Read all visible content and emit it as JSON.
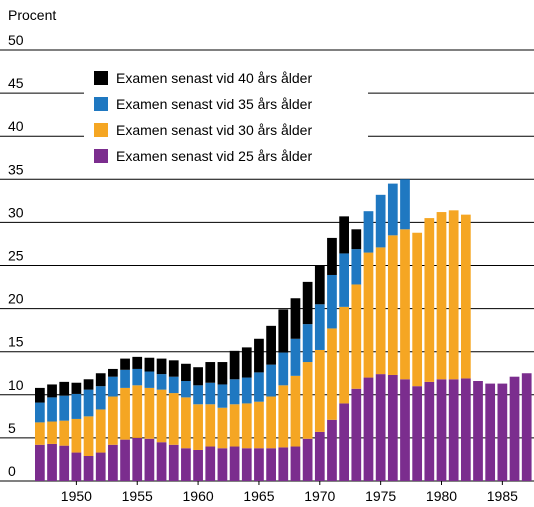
{
  "chart_data": {
    "type": "bar",
    "stacked": true,
    "y_axis_label": "Procent",
    "x": [
      1947,
      1948,
      1949,
      1950,
      1951,
      1952,
      1953,
      1954,
      1955,
      1956,
      1957,
      1958,
      1959,
      1960,
      1961,
      1962,
      1963,
      1964,
      1965,
      1966,
      1967,
      1968,
      1969,
      1970,
      1971,
      1972,
      1973,
      1974,
      1975,
      1976,
      1977,
      1978,
      1979,
      1980,
      1981,
      1982,
      1983,
      1984,
      1985,
      1986,
      1987
    ],
    "xlim": [
      1946.6,
      1987.6
    ],
    "xticks": [
      1950,
      1955,
      1960,
      1965,
      1970,
      1975,
      1980,
      1985
    ],
    "ylim": [
      0,
      50
    ],
    "yticks": [
      0,
      5,
      10,
      15,
      20,
      25,
      30,
      35,
      40,
      45,
      50
    ],
    "grid": true,
    "legend": "top-left",
    "series": [
      {
        "name": "Examen senast vid 25 års ålder",
        "color": "#7b2d8e",
        "values": [
          4.2,
          4.3,
          4.1,
          3.3,
          2.9,
          3.3,
          4.2,
          4.8,
          5.0,
          4.9,
          4.5,
          4.2,
          3.8,
          3.6,
          4.0,
          3.8,
          4.0,
          3.8,
          3.8,
          3.8,
          3.9,
          4.0,
          4.9,
          5.7,
          7.1,
          9.0,
          10.7,
          12.0,
          12.4,
          12.3,
          11.8,
          11.0,
          11.5,
          11.8,
          11.8,
          11.9,
          11.6,
          11.3,
          11.3,
          12.1,
          12.5
        ]
      },
      {
        "name": "Examen senast vid 30 års ålder",
        "color": "#f5a623",
        "values": [
          2.6,
          2.6,
          2.9,
          3.9,
          4.6,
          5.0,
          5.6,
          6.0,
          6.1,
          5.9,
          6.1,
          6.0,
          5.9,
          5.3,
          4.9,
          4.7,
          4.9,
          5.2,
          5.4,
          6.0,
          7.2,
          8.2,
          8.9,
          9.5,
          10.6,
          11.2,
          12.1,
          14.5,
          14.7,
          16.2,
          17.4,
          17.8,
          19.0,
          19.4,
          19.6,
          19.0,
          null,
          null,
          null,
          null,
          null
        ]
      },
      {
        "name": "Examen senast vid 35 års ålder",
        "color": "#1f78c1",
        "values": [
          2.3,
          2.8,
          2.9,
          2.9,
          3.1,
          2.7,
          2.3,
          2.1,
          1.9,
          1.9,
          1.8,
          1.9,
          1.9,
          2.2,
          2.5,
          2.7,
          2.9,
          3.0,
          3.4,
          3.7,
          3.8,
          4.3,
          4.4,
          5.3,
          6.2,
          6.2,
          4.1,
          4.8,
          6.1,
          6.0,
          5.8,
          null,
          null,
          null,
          null,
          null,
          null,
          null,
          null,
          null,
          null
        ]
      },
      {
        "name": "Examen senast vid 40 års ålder",
        "color": "#000000",
        "values": [
          1.7,
          1.5,
          1.6,
          1.3,
          1.2,
          1.5,
          0.9,
          1.3,
          1.4,
          1.6,
          1.8,
          1.9,
          2.0,
          2.1,
          2.4,
          2.6,
          3.3,
          3.5,
          3.9,
          4.5,
          5.0,
          4.7,
          4.9,
          4.5,
          4.3,
          4.3,
          2.3,
          null,
          null,
          null,
          null,
          null,
          null,
          null,
          null,
          null,
          null,
          null,
          null,
          null,
          null
        ]
      }
    ]
  }
}
